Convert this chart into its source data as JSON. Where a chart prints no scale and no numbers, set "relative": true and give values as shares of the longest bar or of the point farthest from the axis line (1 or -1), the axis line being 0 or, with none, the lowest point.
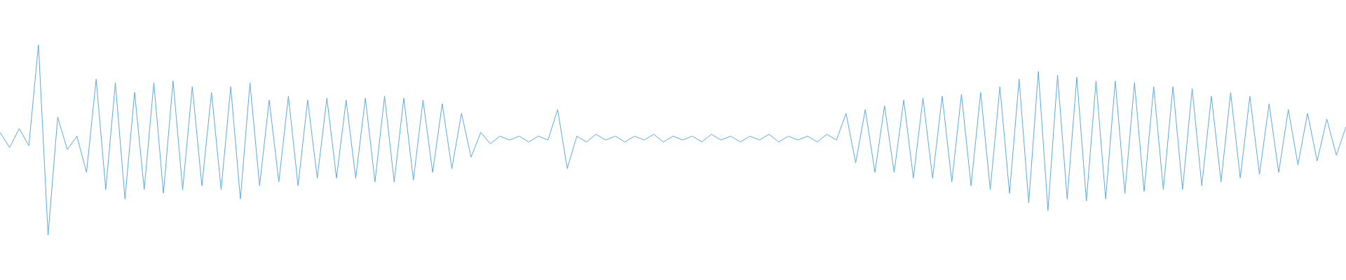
{
  "chart_data": {
    "type": "line",
    "relative": true,
    "marker": "none",
    "color": "#5aaae0",
    "categories": [
      null,
      null,
      null,
      null,
      null,
      null,
      null,
      null,
      null,
      null,
      null,
      null,
      null,
      null,
      null,
      null,
      null,
      null,
      null,
      null,
      null,
      null,
      null,
      null,
      null,
      null,
      null,
      null,
      null,
      null,
      null,
      null,
      null,
      null,
      null,
      null,
      null,
      null,
      null,
      null,
      null,
      null,
      null,
      null,
      null,
      null,
      null,
      null,
      null,
      null,
      null,
      null,
      null,
      null,
      null,
      null,
      null,
      null,
      null,
      null,
      null,
      null,
      null,
      null,
      null,
      null,
      null,
      null,
      null,
      null,
      null,
      null,
      null,
      null,
      null,
      null,
      null,
      null,
      null,
      null,
      null,
      null,
      null,
      null,
      null,
      null,
      null,
      null,
      null,
      null,
      null,
      null,
      null,
      null,
      null,
      null,
      null,
      null,
      null,
      null,
      null,
      null,
      null,
      null,
      null,
      null,
      null,
      null,
      null,
      null,
      null,
      null,
      null,
      null,
      null,
      null,
      null,
      null,
      null,
      null,
      null,
      null,
      null,
      null,
      null,
      null,
      null,
      null,
      null,
      null,
      null,
      null,
      null,
      null,
      null,
      null,
      null,
      null,
      null,
      null,
      null
    ],
    "values": [
      0.54,
      0.46,
      0.56,
      0.47,
      1.0,
      0,
      0.62,
      0.45,
      0.52,
      0.33,
      0.82,
      0.24,
      0.8,
      0.19,
      0.75,
      0.24,
      0.8,
      0.22,
      0.81,
      0.24,
      0.78,
      0.26,
      0.75,
      0.24,
      0.78,
      0.19,
      0.8,
      0.26,
      0.71,
      0.28,
      0.73,
      0.26,
      0.71,
      0.3,
      0.72,
      0.3,
      0.71,
      0.3,
      0.72,
      0.28,
      0.73,
      0.28,
      0.72,
      0.29,
      0.71,
      0.33,
      0.69,
      0.35,
      0.64,
      0.41,
      0.54,
      0.48,
      0.52,
      0.5,
      0.52,
      0.49,
      0.52,
      0.5,
      0.66,
      0.35,
      0.52,
      0.49,
      0.53,
      0.5,
      0.52,
      0.49,
      0.52,
      0.5,
      0.53,
      0.49,
      0.52,
      0.5,
      0.52,
      0.49,
      0.53,
      0.5,
      0.52,
      0.49,
      0.52,
      0.5,
      0.53,
      0.49,
      0.52,
      0.5,
      0.52,
      0.49,
      0.53,
      0.5,
      0.64,
      0.38,
      0.66,
      0.33,
      0.68,
      0.33,
      0.71,
      0.3,
      0.72,
      0.3,
      0.73,
      0.28,
      0.74,
      0.26,
      0.75,
      0.24,
      0.78,
      0.22,
      0.82,
      0.17,
      0.86,
      0.13,
      0.84,
      0.19,
      0.83,
      0.18,
      0.81,
      0.19,
      0.81,
      0.22,
      0.8,
      0.23,
      0.78,
      0.24,
      0.78,
      0.24,
      0.77,
      0.26,
      0.73,
      0.28,
      0.75,
      0.3,
      0.73,
      0.32,
      0.69,
      0.33,
      0.66,
      0.37,
      0.64,
      0.39,
      0.61,
      0.42,
      0.57
    ]
  }
}
